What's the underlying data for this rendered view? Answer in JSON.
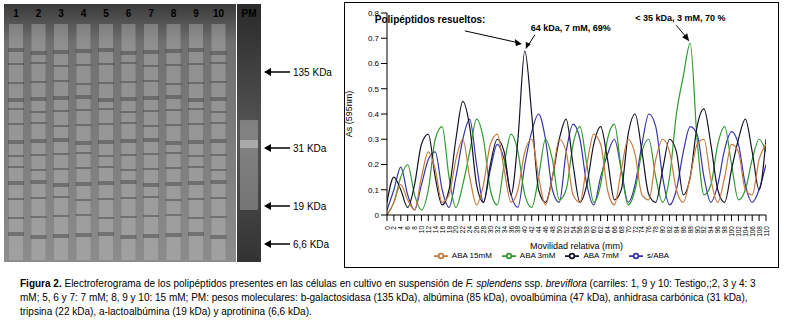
{
  "gel": {
    "lane_labels": [
      "1",
      "2",
      "3",
      "4",
      "5",
      "6",
      "7",
      "8",
      "9",
      "10",
      "PM"
    ],
    "markers": [
      "135 KDa",
      "31 KDa",
      "19 KDa",
      "6,6 KDa"
    ]
  },
  "chart_data": {
    "type": "line",
    "x_label": "Movilidad relativa (mm)",
    "y_label": "As (595nm)",
    "x": [
      0,
      2,
      4,
      6,
      8,
      10,
      12,
      14,
      16,
      18,
      20,
      22,
      24,
      26,
      28,
      30,
      32,
      34,
      36,
      38,
      40,
      42,
      44,
      46,
      48,
      50,
      52,
      54,
      56,
      58,
      60,
      62,
      64,
      66,
      68,
      70,
      72,
      74,
      76,
      78,
      80,
      82,
      84,
      86,
      88,
      90,
      92,
      94,
      96,
      98,
      100,
      102,
      104,
      106,
      108,
      110
    ],
    "xlim": [
      0,
      110
    ],
    "xticks": [
      0,
      2,
      4,
      6,
      8,
      10,
      12,
      14,
      16,
      18,
      20,
      22,
      24,
      26,
      28,
      30,
      32,
      34,
      36,
      38,
      40,
      42,
      44,
      46,
      48,
      50,
      52,
      54,
      56,
      58,
      60,
      62,
      64,
      66,
      68,
      70,
      72,
      74,
      76,
      78,
      80,
      82,
      84,
      86,
      88,
      90,
      92,
      94,
      96,
      98,
      100,
      102,
      104,
      106,
      108,
      110
    ],
    "ylim": [
      0,
      0.8
    ],
    "yticks": [
      0,
      0.1,
      0.2,
      0.3,
      0.4,
      0.5,
      0.6,
      0.7,
      0.8
    ],
    "legend": "bottom",
    "series": [
      {
        "name": "s/ABA",
        "color": "#3535a8",
        "values": [
          0.02,
          0.1,
          0.19,
          0.08,
          0.02,
          0.12,
          0.22,
          0.25,
          0.1,
          0.03,
          0.15,
          0.3,
          0.38,
          0.2,
          0.05,
          0.18,
          0.28,
          0.22,
          0.08,
          0.03,
          0.2,
          0.33,
          0.4,
          0.3,
          0.1,
          0.05,
          0.25,
          0.36,
          0.3,
          0.12,
          0.04,
          0.15,
          0.24,
          0.3,
          0.18,
          0.05,
          0.12,
          0.28,
          0.4,
          0.35,
          0.15,
          0.04,
          0.1,
          0.25,
          0.35,
          0.32,
          0.15,
          0.05,
          0.12,
          0.26,
          0.33,
          0.28,
          0.12,
          0.05,
          0.1,
          0.2
        ]
      },
      {
        "name": "ABA 3mM",
        "color": "#2e9a2e",
        "values": [
          0.0,
          0.05,
          0.15,
          0.2,
          0.08,
          0.02,
          0.1,
          0.3,
          0.35,
          0.15,
          0.03,
          0.12,
          0.25,
          0.38,
          0.3,
          0.1,
          0.04,
          0.2,
          0.32,
          0.25,
          0.08,
          0.03,
          0.15,
          0.3,
          0.22,
          0.06,
          0.1,
          0.28,
          0.35,
          0.2,
          0.05,
          0.12,
          0.3,
          0.36,
          0.18,
          0.04,
          0.1,
          0.25,
          0.3,
          0.15,
          0.05,
          0.15,
          0.4,
          0.55,
          0.68,
          0.3,
          0.08,
          0.12,
          0.28,
          0.35,
          0.2,
          0.06,
          0.1,
          0.22,
          0.3,
          0.25
        ]
      },
      {
        "name": "ABA 7mM",
        "color": "#141428",
        "values": [
          0.05,
          0.15,
          0.1,
          0.03,
          0.12,
          0.28,
          0.32,
          0.15,
          0.04,
          0.1,
          0.3,
          0.45,
          0.35,
          0.12,
          0.05,
          0.2,
          0.3,
          0.25,
          0.08,
          0.3,
          0.65,
          0.4,
          0.1,
          0.05,
          0.15,
          0.3,
          0.38,
          0.2,
          0.05,
          0.12,
          0.28,
          0.35,
          0.22,
          0.06,
          0.1,
          0.32,
          0.4,
          0.25,
          0.08,
          0.05,
          0.18,
          0.3,
          0.25,
          0.08,
          0.15,
          0.35,
          0.42,
          0.28,
          0.1,
          0.05,
          0.18,
          0.3,
          0.38,
          0.25,
          0.1,
          0.3
        ]
      },
      {
        "name": "ABA 15mM",
        "color": "#c8783c",
        "values": [
          0.0,
          0.05,
          0.12,
          0.06,
          0.02,
          0.15,
          0.25,
          0.18,
          0.05,
          0.08,
          0.22,
          0.3,
          0.15,
          0.04,
          0.12,
          0.28,
          0.32,
          0.18,
          0.05,
          0.1,
          0.25,
          0.3,
          0.15,
          0.04,
          0.15,
          0.3,
          0.25,
          0.08,
          0.05,
          0.2,
          0.32,
          0.28,
          0.1,
          0.04,
          0.18,
          0.3,
          0.24,
          0.08,
          0.06,
          0.22,
          0.3,
          0.25,
          0.1,
          0.05,
          0.15,
          0.28,
          0.3,
          0.14,
          0.05,
          0.15,
          0.28,
          0.25,
          0.1,
          0.08,
          0.22,
          0.28
        ]
      }
    ],
    "annotation_title": "Polipéptidos resueltos:",
    "annotations": [
      {
        "text": "64 kDa, 7 mM, 69%",
        "x": 40,
        "y": 0.65
      },
      {
        "text": "< 35 kDa, 3 mM, 70 %",
        "x": 88,
        "y": 0.68
      }
    ]
  },
  "caption": {
    "label": "Figura 2.",
    "segments": [
      {
        "text": "Electroferograma de los polipéptidos presentes en las células en cultivo en  suspensión de ",
        "italic": false
      },
      {
        "text": "F. splendens",
        "italic": true
      },
      {
        "text": " ssp. ",
        "italic": false
      },
      {
        "text": "breviflora",
        "italic": true
      },
      {
        "text": " (carriles: 1, 9 y 10: Testigo,;2, 3 y 4: 3 mM; 5, 6 y 7: 7 mM;  8, 9 y 10:  15 mM; PM: pesos moleculares: b-galactosidasa (135 kDa), albúmina (85 kDa), ovoalbúmina (47 kDa), anhidrasa carbónica (31 kDa), tripsina (22 kDa), a-lactoalbúmina (19 kDa) y aprotinina (6,6 kDa).",
        "italic": false
      }
    ]
  }
}
